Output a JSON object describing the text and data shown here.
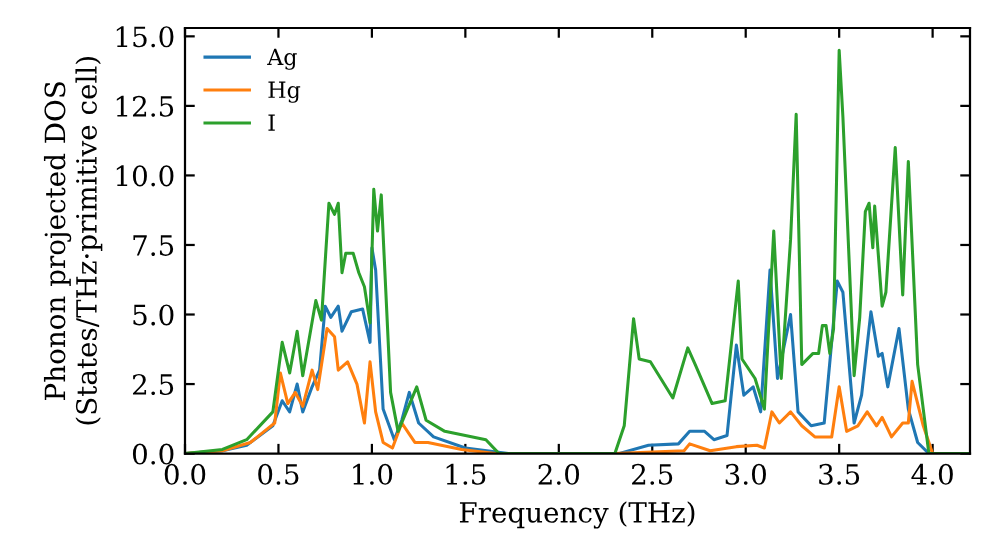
{
  "chart_data": {
    "type": "line",
    "xlabel": "Frequency (THz)",
    "ylabel": "Phonon projected DOS\n(States/THz·primitive cell)",
    "xlim": [
      0,
      4.2
    ],
    "ylim": [
      0,
      15.3
    ],
    "xticks": [
      {
        "value": 0,
        "label": "0.0"
      },
      0.5,
      {
        "value": 1,
        "label": "1.0"
      },
      1.5,
      {
        "value": 2,
        "label": "2.0"
      },
      2.5,
      {
        "value": 3,
        "label": "3.0"
      },
      3.5,
      {
        "value": 4,
        "label": "4.0"
      }
    ],
    "yticks": [
      {
        "value": 0,
        "label": "0.0"
      },
      2.5,
      {
        "value": 5,
        "label": "5.0"
      },
      7.5,
      {
        "value": 10,
        "label": "10.0"
      },
      12.5,
      {
        "value": 15,
        "label": "15.0"
      }
    ],
    "grid": false,
    "legend": "top left",
    "marker": "none",
    "line_style": "solid",
    "series": [
      {
        "name": "Ag",
        "color": "#1f77b4",
        "x": [
          0,
          0.2,
          0.33,
          0.47,
          0.52,
          0.56,
          0.6,
          0.63,
          0.68,
          0.72,
          0.75,
          0.78,
          0.82,
          0.84,
          0.89,
          0.95,
          0.99,
          1.0,
          1.02,
          1.06,
          1.12,
          1.16,
          1.2,
          1.25,
          1.33,
          1.5,
          1.73,
          2.32,
          2.48,
          2.64,
          2.7,
          2.78,
          2.83,
          2.9,
          2.95,
          2.99,
          3.04,
          3.08,
          3.13,
          3.17,
          3.24,
          3.28,
          3.35,
          3.42,
          3.49,
          3.52,
          3.58,
          3.62,
          3.67,
          3.71,
          3.73,
          3.76,
          3.82,
          3.87,
          3.92,
          3.98,
          4.2
        ],
        "values": [
          0,
          0.1,
          0.3,
          1.0,
          1.9,
          1.5,
          2.5,
          1.5,
          2.4,
          3.0,
          5.3,
          4.9,
          5.3,
          4.4,
          5.1,
          5.2,
          4.0,
          7.4,
          6.6,
          1.6,
          0.5,
          1.2,
          2.2,
          1.1,
          0.6,
          0.2,
          0,
          0,
          0.3,
          0.35,
          0.8,
          0.8,
          0.5,
          0.65,
          3.9,
          2.1,
          2.4,
          1.5,
          6.6,
          2.7,
          5.0,
          1.5,
          1.0,
          1.1,
          6.2,
          5.8,
          1.1,
          2.1,
          5.1,
          3.5,
          3.6,
          2.4,
          4.5,
          1.6,
          0.4,
          0,
          0
        ]
      },
      {
        "name": "Hg",
        "color": "#ff7f0e",
        "x": [
          0,
          0.2,
          0.35,
          0.48,
          0.51,
          0.55,
          0.59,
          0.63,
          0.68,
          0.71,
          0.76,
          0.8,
          0.82,
          0.87,
          0.92,
          0.96,
          0.99,
          1.02,
          1.06,
          1.11,
          1.16,
          1.2,
          1.23,
          1.3,
          1.48,
          1.66,
          2.3,
          2.67,
          2.7,
          2.81,
          2.95,
          3.06,
          3.1,
          3.14,
          3.18,
          3.24,
          3.3,
          3.37,
          3.46,
          3.5,
          3.54,
          3.6,
          3.65,
          3.7,
          3.73,
          3.78,
          3.84,
          3.87,
          3.89,
          3.95,
          4.0,
          4.2
        ],
        "values": [
          0,
          0.1,
          0.4,
          1.1,
          2.9,
          1.8,
          2.2,
          1.7,
          3.0,
          2.3,
          4.5,
          4.2,
          3.0,
          3.3,
          2.5,
          1.1,
          3.3,
          1.5,
          0.4,
          0.2,
          1.1,
          0.7,
          0.4,
          0.4,
          0.15,
          0,
          0,
          0.1,
          0.35,
          0.1,
          0.25,
          0.3,
          0.2,
          1.5,
          1.1,
          1.5,
          1.0,
          0.6,
          0.6,
          2.4,
          0.8,
          1.0,
          1.5,
          1.0,
          1.3,
          0.6,
          1.1,
          1.1,
          2.6,
          1.0,
          0,
          0
        ]
      },
      {
        "name": "I",
        "color": "#2ca02c",
        "x": [
          0,
          0.2,
          0.33,
          0.47,
          0.52,
          0.56,
          0.6,
          0.63,
          0.7,
          0.73,
          0.77,
          0.8,
          0.82,
          0.84,
          0.86,
          0.9,
          0.93,
          0.96,
          0.99,
          1.01,
          1.03,
          1.05,
          1.1,
          1.14,
          1.19,
          1.24,
          1.29,
          1.39,
          1.61,
          1.68,
          2.3,
          2.35,
          2.4,
          2.43,
          2.49,
          2.61,
          2.69,
          2.73,
          2.82,
          2.89,
          2.96,
          2.98,
          3.05,
          3.1,
          3.15,
          3.19,
          3.24,
          3.27,
          3.3,
          3.36,
          3.39,
          3.41,
          3.43,
          3.45,
          3.47,
          3.5,
          3.52,
          3.58,
          3.61,
          3.64,
          3.66,
          3.68,
          3.69,
          3.73,
          3.75,
          3.8,
          3.84,
          3.87,
          3.92,
          3.98,
          4.2
        ],
        "values": [
          0,
          0.15,
          0.5,
          1.5,
          4.0,
          2.9,
          4.4,
          2.8,
          5.5,
          4.8,
          9.0,
          8.6,
          9.0,
          6.5,
          7.2,
          7.2,
          6.5,
          6.0,
          4.7,
          9.5,
          8.0,
          9.3,
          2.2,
          0.8,
          1.6,
          2.4,
          1.2,
          0.8,
          0.5,
          0,
          0,
          1.0,
          4.85,
          3.4,
          3.3,
          2.0,
          3.8,
          3.2,
          1.8,
          1.9,
          6.2,
          3.4,
          2.7,
          1.6,
          8.0,
          2.7,
          7.7,
          12.2,
          3.2,
          3.6,
          3.6,
          4.6,
          4.6,
          3.6,
          4.5,
          14.5,
          12.1,
          2.8,
          4.9,
          8.7,
          9.0,
          7.4,
          8.9,
          5.3,
          5.8,
          11.0,
          5.7,
          10.5,
          3.2,
          0,
          0
        ]
      }
    ]
  }
}
